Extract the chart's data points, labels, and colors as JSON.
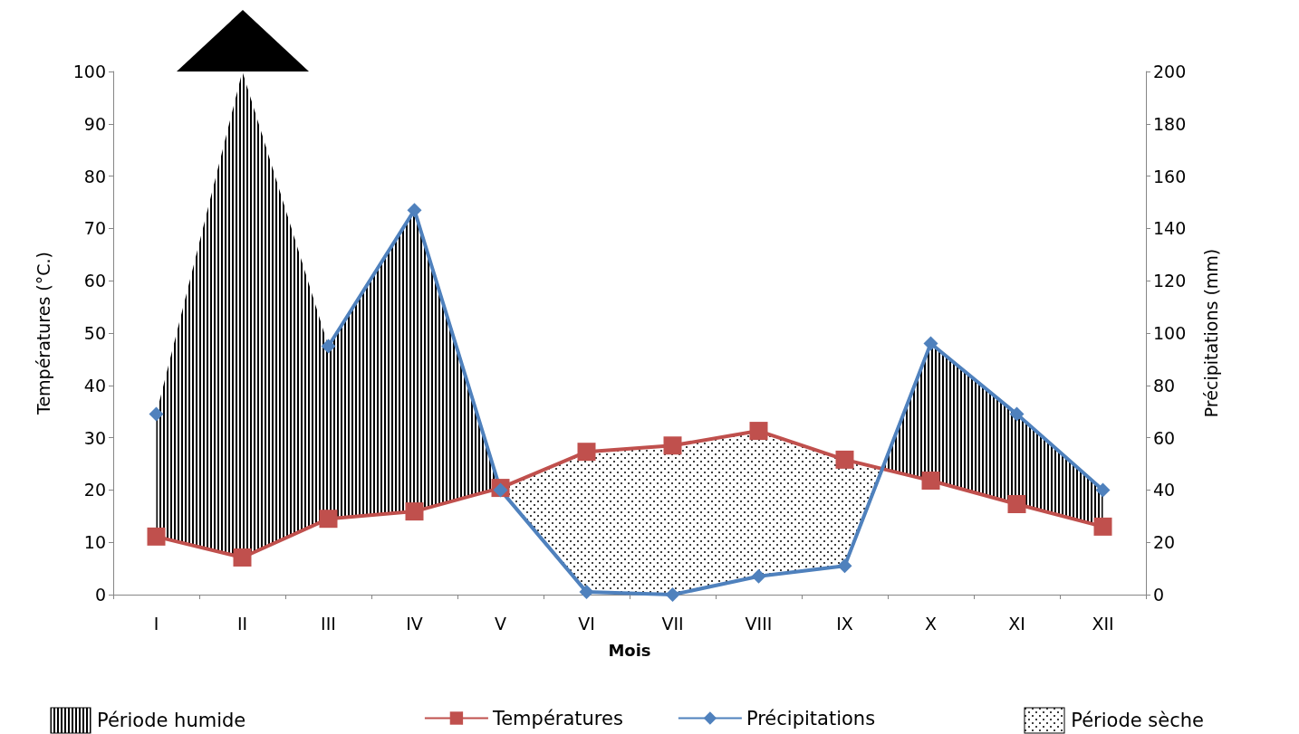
{
  "chart_data": {
    "type": "line",
    "xlabel": "Mois",
    "ylabel": "Températures (°C.)",
    "y2label": "Précipitations (mm)",
    "categories": [
      "I",
      "II",
      "III",
      "IV",
      "V",
      "VI",
      "VII",
      "VIII",
      "IX",
      "X",
      "XI",
      "XII"
    ],
    "series": [
      {
        "name": "Températures",
        "color": "#c0504d",
        "marker": "square",
        "values": [
          11.1,
          7.1,
          14.5,
          15.9,
          20.4,
          27.3,
          28.5,
          31.3,
          25.8,
          21.8,
          17.3,
          13.0
        ]
      },
      {
        "name": "Précipitations",
        "color": "#4f81bd",
        "marker": "diamond",
        "axis": "y2",
        "values": [
          69,
          null,
          95,
          147,
          40,
          1,
          0,
          7,
          11,
          96,
          69,
          40
        ]
      }
    ],
    "annotations": [
      "Période humide",
      "Période sèche"
    ],
    "ylim": [
      0,
      100
    ],
    "yticks": [
      0,
      10,
      20,
      30,
      40,
      50,
      60,
      70,
      80,
      90,
      100
    ],
    "y2lim": [
      0,
      200
    ],
    "y2ticks": [
      0,
      20,
      40,
      60,
      80,
      100,
      120,
      140,
      160,
      180,
      200
    ],
    "grid": false,
    "legend": "bottom"
  }
}
